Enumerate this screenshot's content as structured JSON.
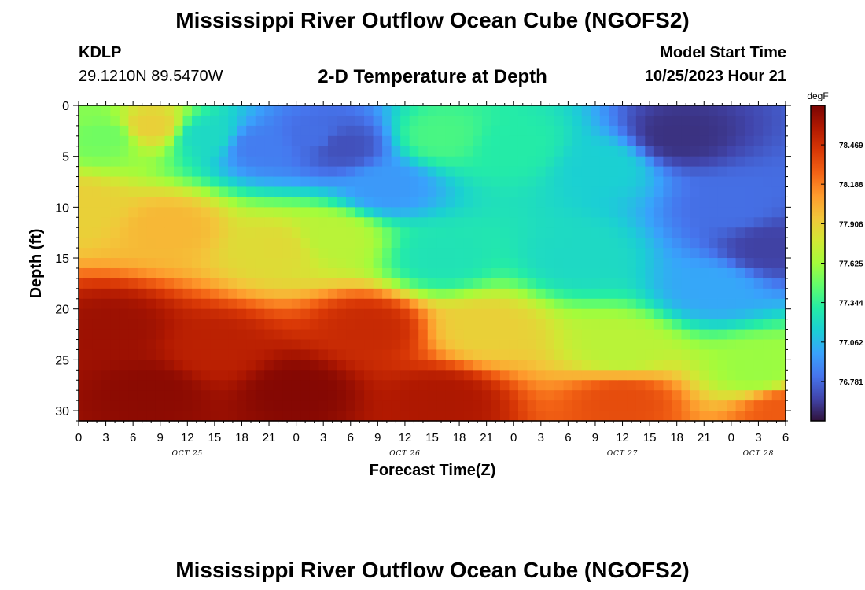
{
  "header": {
    "title": "Mississippi River Outflow Ocean Cube (NGOFS2)",
    "station_id": "KDLP",
    "station_coords": "29.1210N  89.5470W",
    "subtitle": "2-D Temperature at Depth",
    "model_start_label": "Model Start Time",
    "model_start_value": "10/25/2023 Hour 21"
  },
  "footer": {
    "title": "Mississippi River Outflow Ocean Cube (NGOFS2)"
  },
  "chart_data": {
    "type": "heatmap",
    "title": "2-D Temperature at Depth",
    "xlabel": "Forecast Time(Z)",
    "ylabel": "Depth (ft)",
    "x_start": "10/25/2023 00Z",
    "x_step_hours": 1,
    "x_count": 79,
    "xlim": [
      0,
      78
    ],
    "x_tick_labels": [
      "0",
      "3",
      "6",
      "9",
      "12",
      "15",
      "18",
      "21",
      "0",
      "3",
      "6",
      "9",
      "12",
      "15",
      "18",
      "21",
      "0",
      "3",
      "6",
      "9",
      "12",
      "15",
      "18",
      "21",
      "0",
      "3",
      "6"
    ],
    "date_labels": [
      {
        "label": "OCT 25",
        "hour": 12
      },
      {
        "label": "OCT 26",
        "hour": 36
      },
      {
        "label": "OCT 27",
        "hour": 60
      },
      {
        "label": "OCT 28",
        "hour": 75
      }
    ],
    "y_ticks": [
      0,
      5,
      10,
      15,
      20,
      25,
      30
    ],
    "ylim": [
      0,
      31
    ],
    "y_reversed": true,
    "colorbar": {
      "unit": "degF",
      "ticks": [
        "78.469",
        "78.188",
        "77.906",
        "77.625",
        "77.344",
        "77.062",
        "76.781"
      ],
      "tick_values": [
        78.469,
        78.188,
        77.906,
        77.625,
        77.344,
        77.062,
        76.781
      ],
      "range": [
        76.5,
        78.75
      ],
      "colors": [
        "#30123b",
        "#4145ab",
        "#4675ed",
        "#39a2fc",
        "#1bcfd4",
        "#24eca6",
        "#61fc6c",
        "#a4fc3b",
        "#d1e834",
        "#f3c63a",
        "#fe9b2d",
        "#f36315",
        "#d93806",
        "#b11901",
        "#7a0403"
      ]
    },
    "description_points": {
      "dims": [
        "hour",
        "depth_ft",
        "temp_degF"
      ],
      "field": [
        [
          0,
          0,
          77.55
        ],
        [
          3,
          3,
          77.5
        ],
        [
          8,
          2,
          77.9
        ],
        [
          14,
          3,
          77.2
        ],
        [
          20,
          4,
          76.85
        ],
        [
          26,
          3,
          76.8
        ],
        [
          29,
          4,
          76.7
        ],
        [
          34,
          8,
          76.95
        ],
        [
          40,
          3,
          77.4
        ],
        [
          48,
          4,
          77.3
        ],
        [
          58,
          6,
          77.15
        ],
        [
          66,
          3,
          76.6
        ],
        [
          72,
          10,
          76.8
        ],
        [
          76,
          14,
          76.65
        ],
        [
          0,
          10,
          77.9
        ],
        [
          10,
          12,
          78.0
        ],
        [
          22,
          14,
          77.85
        ],
        [
          28,
          13,
          77.7
        ],
        [
          40,
          15,
          77.25
        ],
        [
          55,
          15,
          77.2
        ],
        [
          70,
          18,
          77.0
        ],
        [
          4,
          22,
          78.65
        ],
        [
          15,
          24,
          78.55
        ],
        [
          32,
          22,
          78.5
        ],
        [
          45,
          22,
          77.9
        ],
        [
          60,
          24,
          77.7
        ],
        [
          75,
          26,
          77.6
        ],
        [
          8,
          28,
          78.7
        ],
        [
          24,
          28,
          78.72
        ],
        [
          40,
          29,
          78.6
        ],
        [
          60,
          29,
          78.35
        ],
        [
          78,
          30,
          78.3
        ]
      ]
    }
  }
}
